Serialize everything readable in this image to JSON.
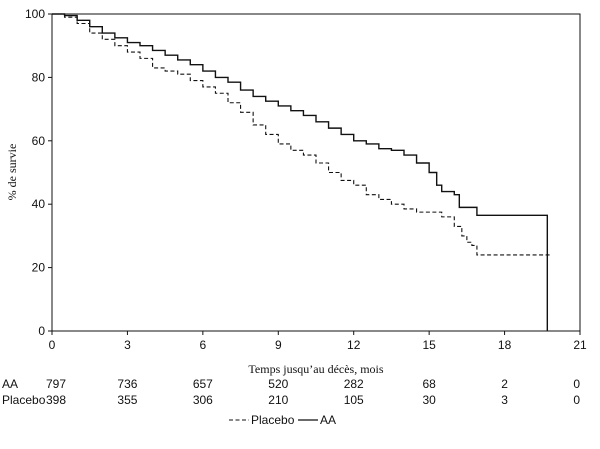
{
  "chart_data": {
    "type": "line",
    "title": "",
    "xlabel": "Temps jusqu’au décès, mois",
    "ylabel": "% de survie",
    "xlim": [
      0,
      21
    ],
    "ylim": [
      0,
      100
    ],
    "xticks": [
      0,
      3,
      6,
      9,
      12,
      15,
      18,
      21
    ],
    "yticks": [
      0,
      20,
      40,
      60,
      80,
      100
    ],
    "x_tick_labels": [
      "0",
      "3",
      "6",
      "9",
      "12",
      "15",
      "18",
      "21"
    ],
    "y_tick_labels": [
      "0",
      "20",
      "40",
      "60",
      "80",
      "100"
    ],
    "legend": {
      "placement": "bottom-center"
    },
    "series": [
      {
        "name": "Placebo",
        "style": "dashed",
        "color": "#111111",
        "x": [
          0,
          0.5,
          1.0,
          1.5,
          2.0,
          2.5,
          3.0,
          3.5,
          4.0,
          4.5,
          5.0,
          5.5,
          6.0,
          6.5,
          7.0,
          7.5,
          8.0,
          8.5,
          9.0,
          9.5,
          10.0,
          10.5,
          11.0,
          11.5,
          12.0,
          12.5,
          13.0,
          13.5,
          14.0,
          14.5,
          15.0,
          15.5,
          15.8,
          16.0,
          16.3,
          16.5,
          16.7,
          16.9,
          19.8
        ],
        "y": [
          100,
          99,
          97,
          94,
          92,
          90,
          88,
          86,
          83,
          82,
          81,
          79,
          77,
          75,
          72,
          69,
          65,
          62,
          59,
          57,
          55.5,
          53,
          50,
          47.5,
          46,
          43,
          41.5,
          40,
          38.5,
          37.5,
          37.5,
          36,
          36,
          33,
          30,
          28,
          27,
          24,
          24
        ]
      },
      {
        "name": "AA",
        "style": "solid",
        "color": "#111111",
        "x": [
          0,
          0.5,
          1.0,
          1.5,
          2.0,
          2.5,
          3.0,
          3.5,
          4.0,
          4.5,
          5.0,
          5.5,
          6.0,
          6.5,
          7.0,
          7.5,
          8.0,
          8.5,
          9.0,
          9.5,
          10.0,
          10.5,
          11.0,
          11.5,
          12.0,
          12.5,
          13.0,
          13.5,
          14.0,
          14.5,
          15.0,
          15.3,
          15.5,
          16.0,
          16.2,
          16.5,
          16.9,
          19.7,
          19.7
        ],
        "y": [
          100,
          99.5,
          98,
          96,
          94,
          92.5,
          91,
          90,
          88.5,
          87,
          85.5,
          84,
          82,
          80,
          78.5,
          76,
          74,
          72.5,
          71,
          69.5,
          68,
          66,
          64,
          62,
          60,
          59,
          57.5,
          57,
          55.5,
          53,
          50,
          46,
          44,
          43,
          39,
          39,
          36.5,
          36.5,
          0
        ]
      }
    ],
    "risk_table": {
      "times": [
        0,
        3,
        6,
        9,
        12,
        15,
        18,
        21
      ],
      "rows": [
        {
          "label": "AA",
          "values": [
            "797",
            "736",
            "657",
            "520",
            "282",
            "68",
            "2",
            "0"
          ]
        },
        {
          "label": "Placebo",
          "values": [
            "398",
            "355",
            "306",
            "210",
            "105",
            "30",
            "3",
            "0"
          ]
        }
      ]
    }
  }
}
